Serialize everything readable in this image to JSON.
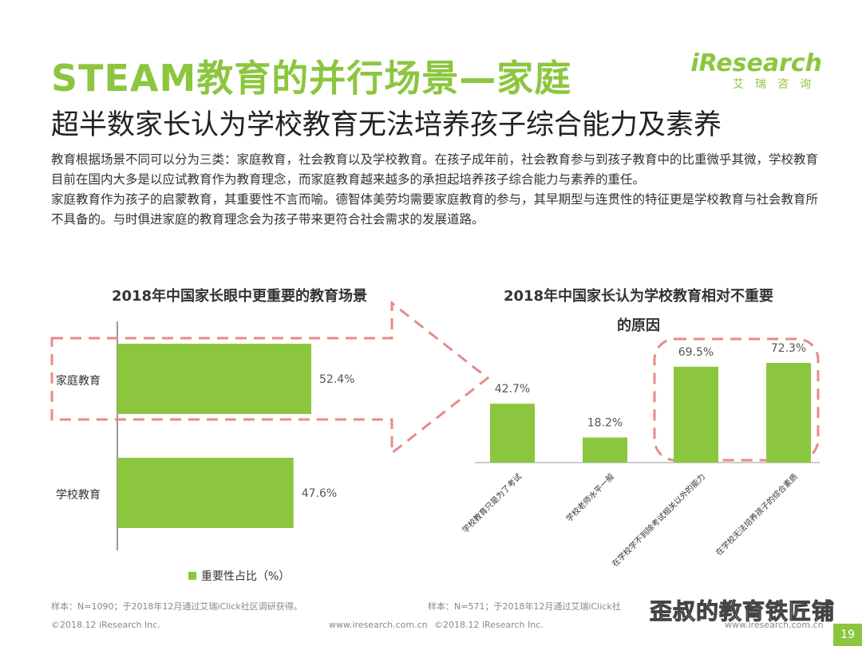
{
  "header": {
    "title": "STEAM教育的并行场景—家庭",
    "subtitle": "超半数家长认为学校教育无法培养孩子综合能力及素养",
    "logo_main": "iResearch",
    "logo_sub": "艾瑞咨询"
  },
  "body": {
    "para1": "教育根据场景不同可以分为三类：家庭教育，社会教育以及学校教育。在孩子成年前，社会教育参与到孩子教育中的比重微乎其微，学校教育目前在国内大多是以应试教育作为教育理念，而家庭教育越来越多的承担起培养孩子综合能力与素养的重任。",
    "para2": "家庭教育作为孩子的启蒙教育，其重要性不言而喻。德智体美劳均需要家庭教育的参与，其早期型与连贯性的特征更是学校教育与社会教育所不具备的。与时俱进家庭的教育理念会为孩子带来更符合社会需求的发展道路。"
  },
  "colors": {
    "accent": "#8cc63e",
    "highlight": "#e88a8a"
  },
  "chart_data": [
    {
      "type": "bar",
      "orientation": "horizontal",
      "title": "2018年中国家长眼中更重要的教育场景",
      "categories": [
        "家庭教育",
        "学校教育"
      ],
      "series": [
        {
          "name": "重要性占比（%）",
          "values": [
            52.4,
            47.6
          ]
        }
      ],
      "value_labels": [
        "52.4%",
        "47.6%"
      ],
      "legend": "bottom",
      "highlighted_category": "家庭教育"
    },
    {
      "type": "bar",
      "title_line1": "2018年中国家长认为学校教育相对不重要",
      "title_line2": "的原因",
      "categories": [
        "学校教育只是为了考试",
        "学校老师水平一般",
        "在学校学不到除考试相关以外的能力",
        "在学校无法培养孩子的综合素质"
      ],
      "values": [
        42.7,
        18.2,
        69.5,
        72.3
      ],
      "value_labels": [
        "42.7%",
        "18.2%",
        "69.5%",
        "72.3%"
      ],
      "highlighted_categories": [
        "在学校学不到除考试相关以外的能力",
        "在学校无法培养孩子的综合素质"
      ]
    }
  ],
  "footer": {
    "sample_left": "样本：N=1090；于2018年12月通过艾瑞iClick社区调研获得。",
    "sample_right": "样本：N=571；于2018年12月通过艾瑞iClick社",
    "copyright_left": "©2018.12 iResearch Inc.",
    "site_mid": "www.iresearch.com.cn",
    "copyright_mid": "©2018.12 iResearch Inc.",
    "site_right": "www.iresearch.com.cn",
    "watermark": "歪叔的教育铁匠铺",
    "page": "19"
  }
}
